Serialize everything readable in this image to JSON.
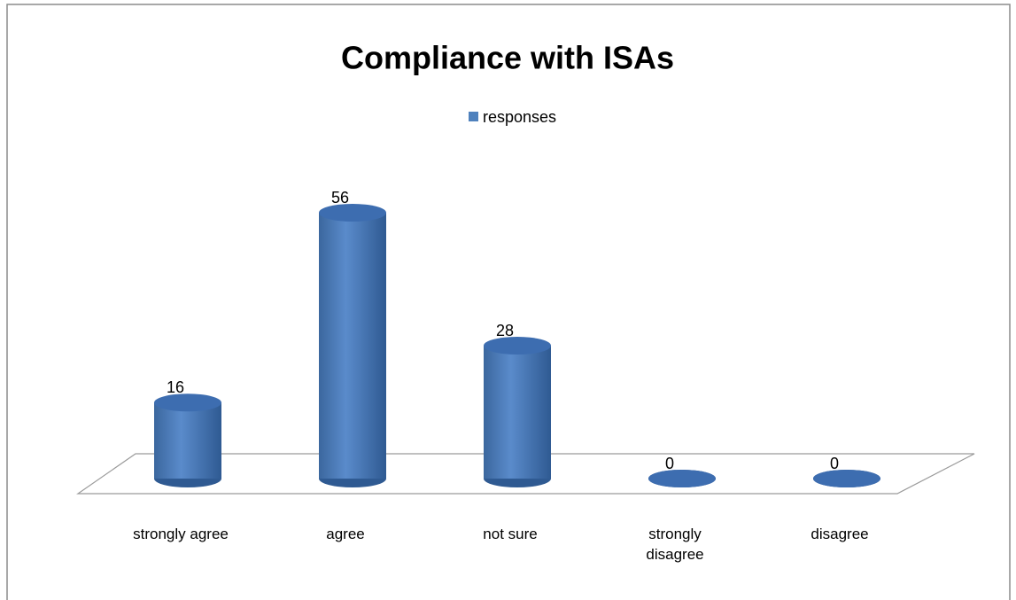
{
  "chart_data": {
    "type": "bar3d",
    "title": "Compliance with ISAs",
    "categories": [
      "strongly agree",
      "agree",
      "not sure",
      "strongly disagree",
      "disagree"
    ],
    "series": [
      {
        "name": "responses",
        "color": "#4f81bd",
        "values": [
          16,
          56,
          28,
          0,
          0
        ]
      }
    ],
    "legend": "top"
  }
}
